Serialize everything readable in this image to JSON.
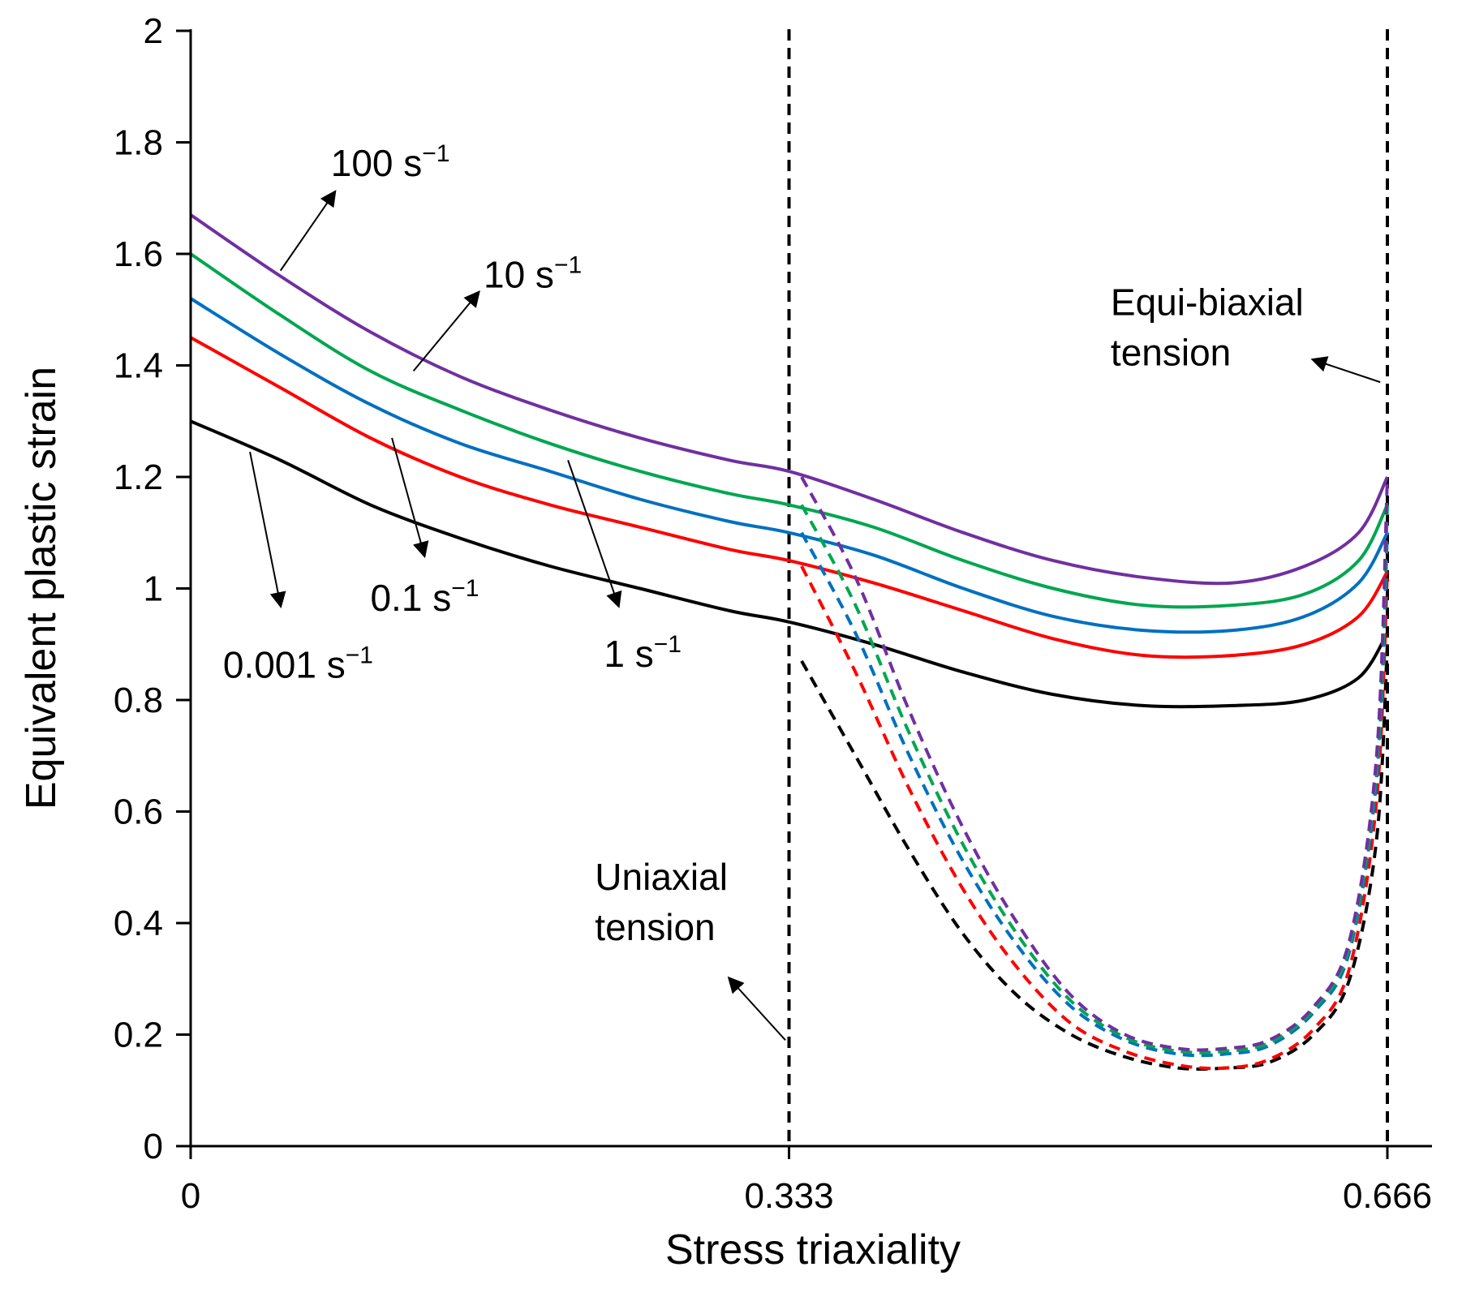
{
  "chart_data": {
    "type": "line",
    "xlabel": "Stress triaxiality",
    "ylabel": "Equivalent plastic strain",
    "xlim": [
      0,
      0.666
    ],
    "ylim": [
      0,
      2
    ],
    "x_ticks": [
      "0",
      "0.333",
      "0.666"
    ],
    "y_ticks": [
      "0",
      "0.2",
      "0.4",
      "0.6",
      "0.8",
      "1",
      "1.2",
      "1.4",
      "1.6",
      "1.8",
      "2"
    ],
    "grid": false,
    "legend": "none",
    "reference_lines": [
      {
        "x": 0.333,
        "style": "dashed",
        "label": [
          "Uniaxial",
          "tension"
        ]
      },
      {
        "x": 0.666,
        "style": "dashed",
        "label": [
          "Equi-biaxial",
          "tension"
        ]
      }
    ],
    "series": [
      {
        "rate_label": "0.001 s",
        "color": "#000000",
        "solid": {
          "x": [
            0,
            0.05,
            0.1,
            0.15,
            0.2,
            0.25,
            0.3,
            0.333,
            0.38,
            0.43,
            0.48,
            0.53,
            0.58,
            0.62,
            0.65,
            0.666
          ],
          "y": [
            1.3,
            1.23,
            1.15,
            1.09,
            1.04,
            1.0,
            0.96,
            0.94,
            0.9,
            0.85,
            0.81,
            0.79,
            0.79,
            0.8,
            0.84,
            0.92
          ]
        },
        "dashed": {
          "x": [
            0.34,
            0.37,
            0.4,
            0.43,
            0.46,
            0.49,
            0.52,
            0.55,
            0.575,
            0.6,
            0.625,
            0.645,
            0.66,
            0.666
          ],
          "y": [
            0.87,
            0.7,
            0.53,
            0.38,
            0.27,
            0.2,
            0.16,
            0.14,
            0.14,
            0.15,
            0.2,
            0.3,
            0.55,
            0.9
          ]
        }
      },
      {
        "rate_label": "0.1 s",
        "color": "#ff0000",
        "solid": {
          "x": [
            0,
            0.05,
            0.1,
            0.15,
            0.2,
            0.25,
            0.3,
            0.333,
            0.38,
            0.43,
            0.48,
            0.53,
            0.58,
            0.62,
            0.65,
            0.666
          ],
          "y": [
            1.45,
            1.36,
            1.27,
            1.2,
            1.15,
            1.11,
            1.07,
            1.05,
            1.01,
            0.96,
            0.91,
            0.88,
            0.88,
            0.9,
            0.95,
            1.03
          ]
        },
        "dashed": {
          "x": [
            0.34,
            0.37,
            0.4,
            0.43,
            0.46,
            0.49,
            0.52,
            0.55,
            0.575,
            0.6,
            0.625,
            0.645,
            0.66,
            0.666
          ],
          "y": [
            1.04,
            0.85,
            0.64,
            0.46,
            0.32,
            0.22,
            0.17,
            0.145,
            0.14,
            0.155,
            0.21,
            0.32,
            0.62,
            1.03
          ]
        }
      },
      {
        "rate_label": "1 s",
        "color": "#0070c0",
        "solid": {
          "x": [
            0,
            0.05,
            0.1,
            0.15,
            0.2,
            0.25,
            0.3,
            0.333,
            0.38,
            0.43,
            0.48,
            0.53,
            0.58,
            0.62,
            0.65,
            0.666
          ],
          "y": [
            1.52,
            1.42,
            1.33,
            1.26,
            1.21,
            1.16,
            1.12,
            1.1,
            1.06,
            1.0,
            0.95,
            0.925,
            0.925,
            0.95,
            1.01,
            1.1
          ]
        },
        "dashed": {
          "x": [
            0.34,
            0.37,
            0.4,
            0.43,
            0.46,
            0.49,
            0.52,
            0.55,
            0.575,
            0.6,
            0.625,
            0.645,
            0.66,
            0.666
          ],
          "y": [
            1.1,
            0.92,
            0.7,
            0.51,
            0.36,
            0.25,
            0.19,
            0.165,
            0.165,
            0.18,
            0.24,
            0.35,
            0.66,
            1.1
          ]
        }
      },
      {
        "rate_label": "10 s",
        "color": "#00a650",
        "solid": {
          "x": [
            0,
            0.05,
            0.1,
            0.15,
            0.2,
            0.25,
            0.3,
            0.333,
            0.38,
            0.43,
            0.48,
            0.53,
            0.58,
            0.62,
            0.65,
            0.666
          ],
          "y": [
            1.6,
            1.49,
            1.39,
            1.32,
            1.26,
            1.21,
            1.17,
            1.15,
            1.11,
            1.05,
            1.0,
            0.97,
            0.97,
            0.99,
            1.05,
            1.15
          ]
        },
        "dashed": {
          "x": [
            0.34,
            0.37,
            0.4,
            0.43,
            0.46,
            0.49,
            0.52,
            0.55,
            0.575,
            0.6,
            0.625,
            0.645,
            0.66,
            0.666
          ],
          "y": [
            1.15,
            0.97,
            0.74,
            0.54,
            0.38,
            0.26,
            0.195,
            0.17,
            0.17,
            0.185,
            0.245,
            0.36,
            0.68,
            1.15
          ]
        }
      },
      {
        "rate_label": "100 s",
        "color": "#7030a0",
        "solid": {
          "x": [
            0,
            0.05,
            0.1,
            0.15,
            0.2,
            0.25,
            0.3,
            0.333,
            0.38,
            0.43,
            0.48,
            0.53,
            0.58,
            0.62,
            0.65,
            0.666
          ],
          "y": [
            1.67,
            1.56,
            1.46,
            1.38,
            1.32,
            1.27,
            1.23,
            1.21,
            1.16,
            1.1,
            1.05,
            1.02,
            1.01,
            1.04,
            1.1,
            1.2
          ]
        },
        "dashed": {
          "x": [
            0.34,
            0.37,
            0.4,
            0.43,
            0.46,
            0.49,
            0.52,
            0.55,
            0.575,
            0.6,
            0.625,
            0.645,
            0.66,
            0.666
          ],
          "y": [
            1.2,
            1.02,
            0.78,
            0.57,
            0.4,
            0.27,
            0.2,
            0.175,
            0.175,
            0.19,
            0.25,
            0.37,
            0.7,
            1.2
          ]
        }
      }
    ],
    "rate_exponent": "−1",
    "annotations": [
      {
        "label": "100 s",
        "arrow_from": [
          0.05,
          1.57
        ],
        "arrow_to": [
          0.08,
          1.71
        ],
        "text_at": [
          0.078,
          1.74
        ]
      },
      {
        "label": "10 s",
        "arrow_from": [
          0.124,
          1.39
        ],
        "arrow_to": [
          0.16,
          1.53
        ],
        "text_at": [
          0.163,
          1.54
        ]
      },
      {
        "label": "0.1 s",
        "arrow_from": [
          0.112,
          1.27
        ],
        "arrow_to": [
          0.13,
          1.06
        ],
        "text_at": [
          0.1,
          0.96
        ]
      },
      {
        "label": "1 s",
        "arrow_from": [
          0.21,
          1.23
        ],
        "arrow_to": [
          0.238,
          0.97
        ],
        "text_at": [
          0.23,
          0.86
        ]
      },
      {
        "label": "0.001 s",
        "arrow_from": [
          0.033,
          1.245
        ],
        "arrow_to": [
          0.05,
          0.97
        ],
        "text_at": [
          0.018,
          0.84
        ]
      },
      {
        "label": "Uniaxial tension",
        "arrow_from": [
          0.331,
          0.19
        ],
        "arrow_to": [
          0.3,
          0.3
        ],
        "text_at": [
          0.225,
          0.46
        ]
      },
      {
        "label": "Equi-biaxial tension",
        "arrow_from": [
          0.662,
          1.37
        ],
        "arrow_to": [
          0.625,
          1.41
        ],
        "text_at": [
          0.512,
          1.49
        ]
      }
    ]
  }
}
